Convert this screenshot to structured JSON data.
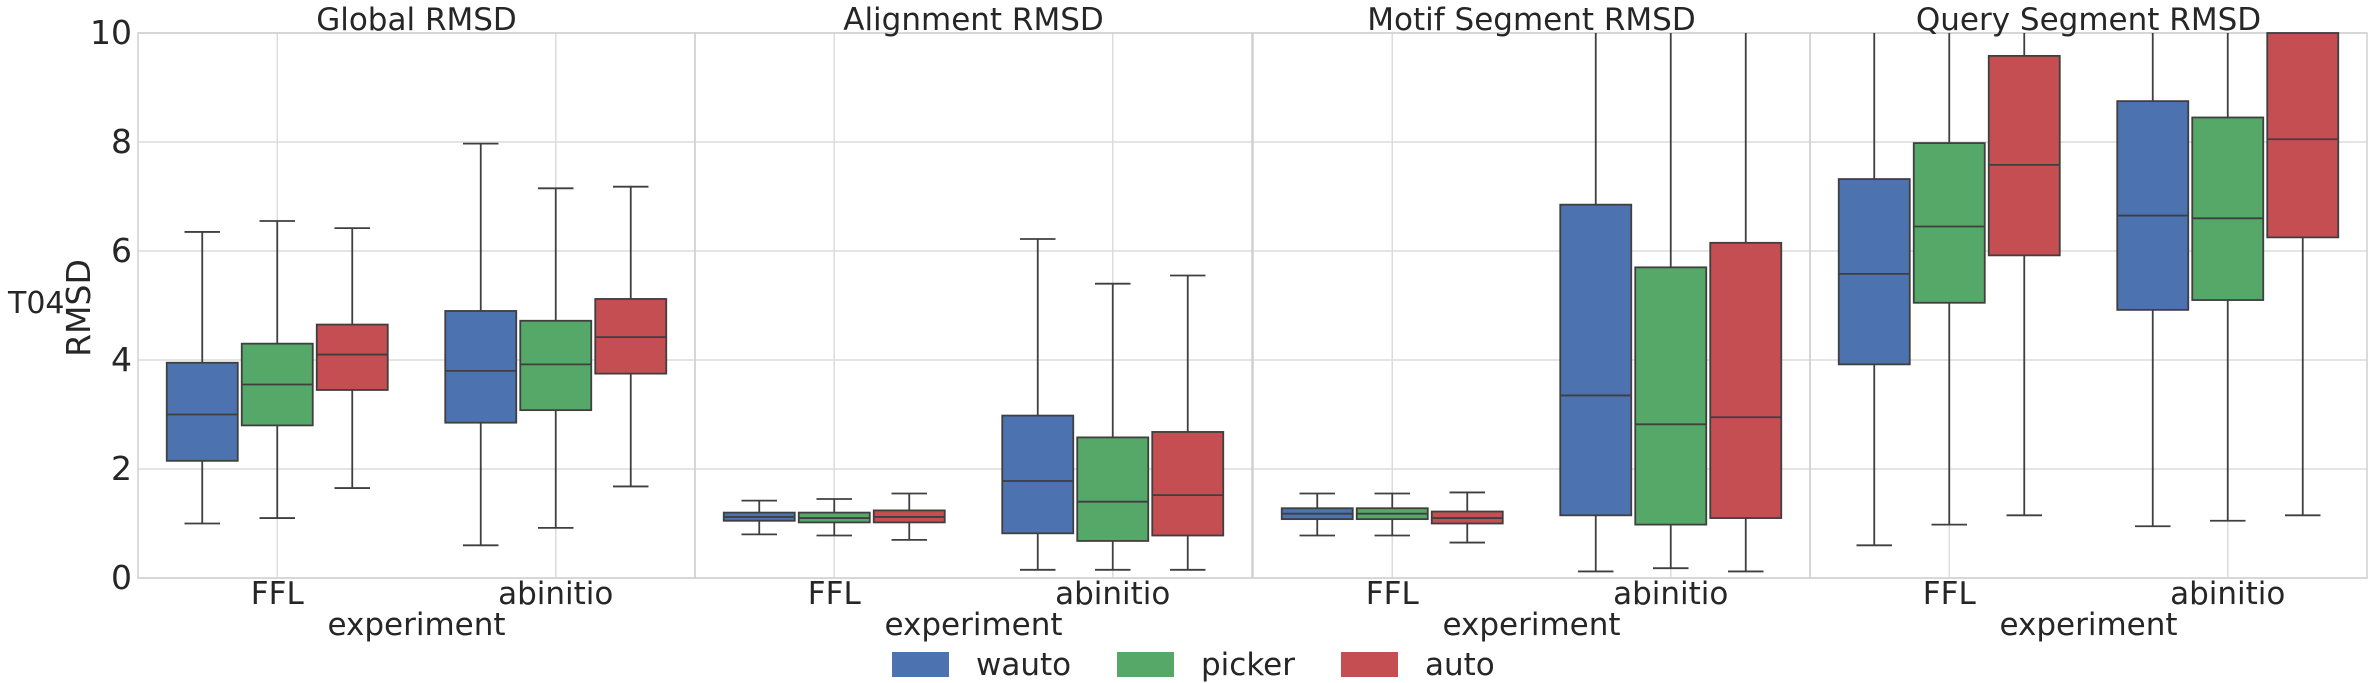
{
  "chart_data": {
    "type": "box",
    "row_label": "T04",
    "ylabel": "RMSD",
    "xlabel": "experiment",
    "ylim": [
      0,
      10
    ],
    "yticks": [
      0,
      2,
      4,
      6,
      8,
      10
    ],
    "grid": true,
    "legend_position": "bottom-center",
    "categories": [
      "FFL",
      "abinitio"
    ],
    "series": [
      {
        "name": "wauto",
        "color": "#4c72b0"
      },
      {
        "name": "picker",
        "color": "#55a868"
      },
      {
        "name": "auto",
        "color": "#c44e52"
      }
    ],
    "panels": [
      {
        "title": "Global RMSD",
        "boxes": [
          [
            {
              "whislo": 1.0,
              "q1": 2.15,
              "med": 3.0,
              "q3": 3.95,
              "whishi": 6.35
            },
            {
              "whislo": 1.1,
              "q1": 2.8,
              "med": 3.55,
              "q3": 4.3,
              "whishi": 6.55
            },
            {
              "whislo": 1.65,
              "q1": 3.45,
              "med": 4.1,
              "q3": 4.65,
              "whishi": 6.42
            }
          ],
          [
            {
              "whislo": 0.6,
              "q1": 2.85,
              "med": 3.8,
              "q3": 4.9,
              "whishi": 7.97
            },
            {
              "whislo": 0.92,
              "q1": 3.08,
              "med": 3.92,
              "q3": 4.72,
              "whishi": 7.15
            },
            {
              "whislo": 1.68,
              "q1": 3.75,
              "med": 4.42,
              "q3": 5.12,
              "whishi": 7.18
            }
          ]
        ]
      },
      {
        "title": "Alignment RMSD",
        "boxes": [
          [
            {
              "whislo": 0.8,
              "q1": 1.05,
              "med": 1.12,
              "q3": 1.2,
              "whishi": 1.42
            },
            {
              "whislo": 0.78,
              "q1": 1.02,
              "med": 1.1,
              "q3": 1.2,
              "whishi": 1.45
            },
            {
              "whislo": 0.7,
              "q1": 1.02,
              "med": 1.12,
              "q3": 1.24,
              "whishi": 1.55
            }
          ],
          [
            {
              "whislo": 0.15,
              "q1": 0.82,
              "med": 1.78,
              "q3": 2.98,
              "whishi": 6.22
            },
            {
              "whislo": 0.15,
              "q1": 0.68,
              "med": 1.4,
              "q3": 2.58,
              "whishi": 5.4
            },
            {
              "whislo": 0.15,
              "q1": 0.78,
              "med": 1.52,
              "q3": 2.68,
              "whishi": 5.55
            }
          ]
        ]
      },
      {
        "title": "Motif Segment RMSD",
        "boxes": [
          [
            {
              "whislo": 0.78,
              "q1": 1.08,
              "med": 1.18,
              "q3": 1.28,
              "whishi": 1.55
            },
            {
              "whislo": 0.78,
              "q1": 1.08,
              "med": 1.18,
              "q3": 1.28,
              "whishi": 1.55
            },
            {
              "whislo": 0.65,
              "q1": 1.0,
              "med": 1.1,
              "q3": 1.22,
              "whishi": 1.57
            }
          ],
          [
            {
              "whislo": 0.12,
              "q1": 1.15,
              "med": 3.35,
              "q3": 6.85,
              "whishi": 10.0
            },
            {
              "whislo": 0.18,
              "q1": 0.98,
              "med": 2.82,
              "q3": 5.7,
              "whishi": 10.0
            },
            {
              "whislo": 0.12,
              "q1": 1.1,
              "med": 2.95,
              "q3": 6.15,
              "whishi": 10.0
            }
          ]
        ]
      },
      {
        "title": "Query Segment RMSD",
        "boxes": [
          [
            {
              "whislo": 0.6,
              "q1": 3.92,
              "med": 5.58,
              "q3": 7.32,
              "whishi": 10.0
            },
            {
              "whislo": 0.98,
              "q1": 5.05,
              "med": 6.45,
              "q3": 7.98,
              "whishi": 10.0
            },
            {
              "whislo": 1.15,
              "q1": 5.92,
              "med": 7.58,
              "q3": 9.58,
              "whishi": 10.0
            }
          ],
          [
            {
              "whislo": 0.95,
              "q1": 4.92,
              "med": 6.65,
              "q3": 8.75,
              "whishi": 10.0
            },
            {
              "whislo": 1.05,
              "q1": 5.1,
              "med": 6.6,
              "q3": 8.45,
              "whishi": 10.0
            },
            {
              "whislo": 1.15,
              "q1": 6.25,
              "med": 8.05,
              "q3": 10.0,
              "whishi": 10.0
            }
          ]
        ]
      }
    ]
  }
}
